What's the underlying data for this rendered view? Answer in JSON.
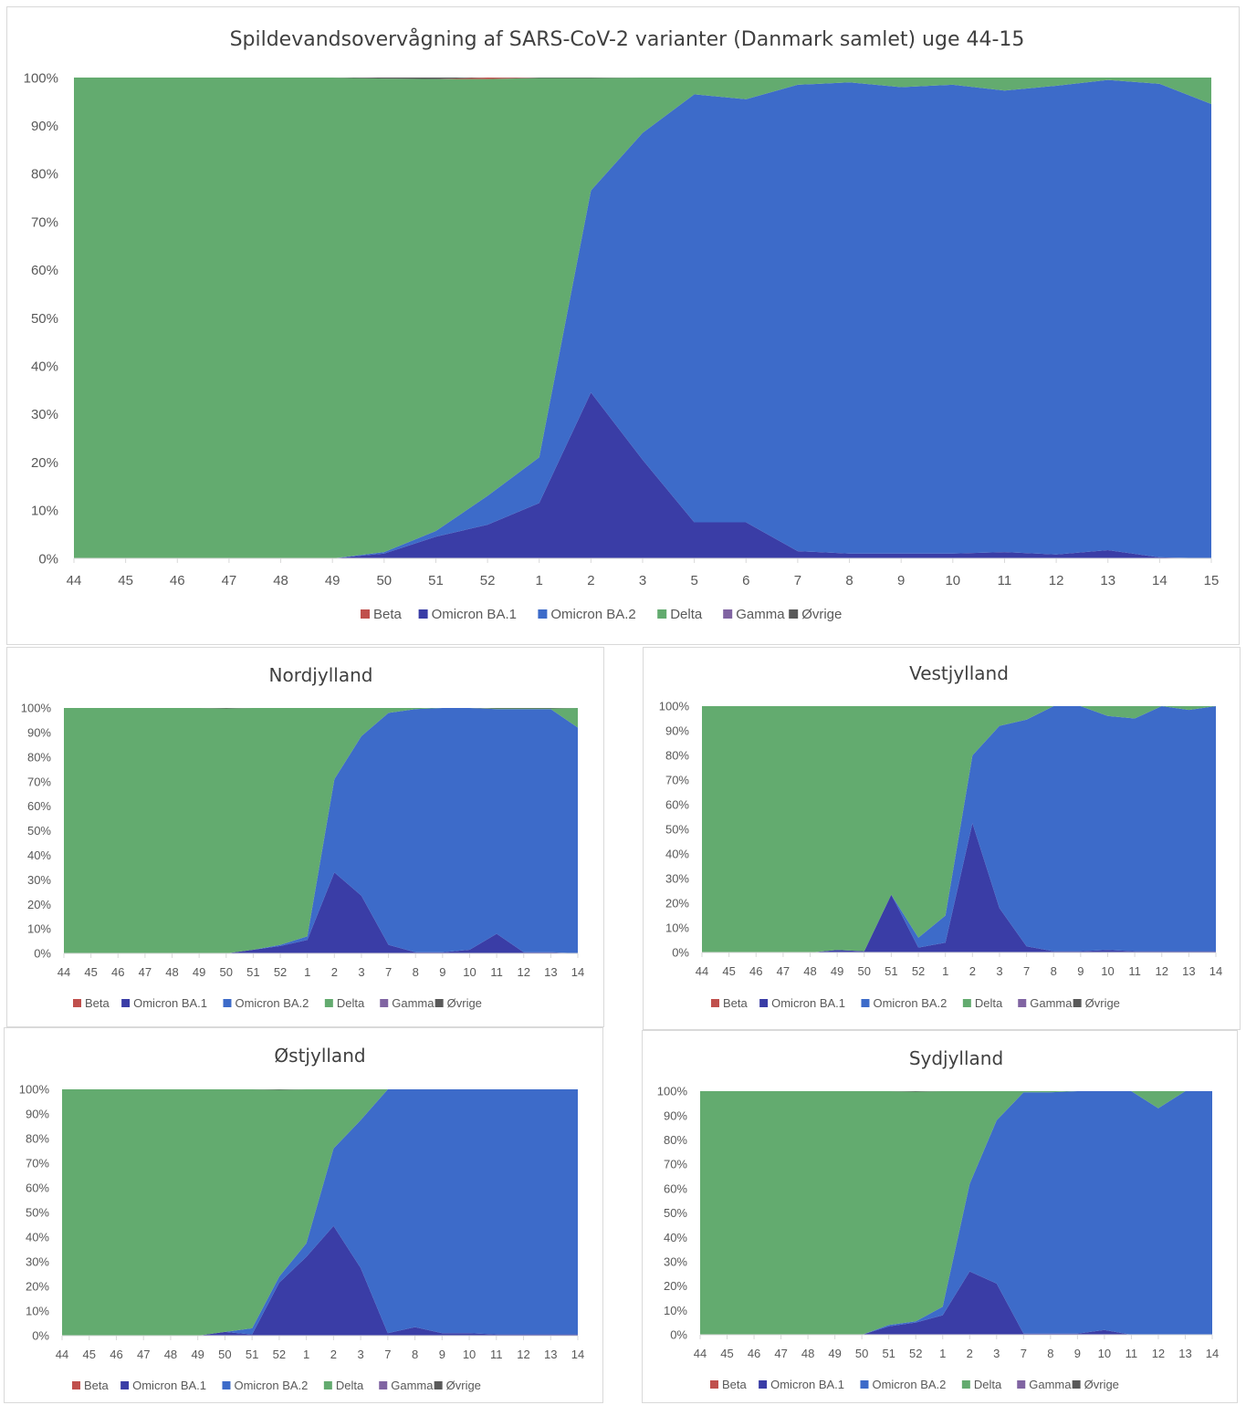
{
  "legend": [
    {
      "name": "Beta",
      "color": "#c0504d"
    },
    {
      "name": "Omicron BA.1",
      "color": "#3a3da6"
    },
    {
      "name": "Omicron BA.2",
      "color": "#3d6bc9"
    },
    {
      "name": "Delta",
      "color": "#63ab6f"
    },
    {
      "name": "Gamma",
      "color": "#8064a2"
    },
    {
      "name": "Øvrige",
      "color": "#595959"
    }
  ],
  "chart_data": [
    {
      "type": "area",
      "stacked": "percent",
      "title": "Spildevandsovervågning af SARS-CoV-2 varianter (Danmark samlet) uge 44-15",
      "categories": [
        "44",
        "45",
        "46",
        "47",
        "48",
        "49",
        "50",
        "51",
        "52",
        "1",
        "2",
        "3",
        "5",
        "6",
        "7",
        "8",
        "9",
        "10",
        "11",
        "12",
        "13",
        "14",
        "15"
      ],
      "yticks": [
        "0%",
        "10%",
        "20%",
        "30%",
        "40%",
        "50%",
        "60%",
        "70%",
        "80%",
        "90%",
        "100%"
      ],
      "ylim": [
        0,
        100
      ],
      "legend_position": "bottom",
      "series": [
        {
          "name": "Omicron BA.1",
          "values": [
            0,
            0,
            0,
            0,
            0,
            0,
            1,
            4.5,
            7,
            11.5,
            34.5,
            20.5,
            7.5,
            7.5,
            1.5,
            1,
            1,
            1,
            1.3,
            0.8,
            1.7,
            0.2,
            0
          ]
        },
        {
          "name": "Omicron BA.2",
          "values": [
            0,
            0,
            0,
            0,
            0,
            0,
            0.3,
            1.2,
            6,
            9.5,
            42,
            68,
            89,
            88,
            97,
            98,
            97,
            97.5,
            96,
            97.5,
            97.8,
            98.5,
            94.5
          ]
        },
        {
          "name": "Delta",
          "values": [
            100,
            100,
            100,
            100,
            100,
            100,
            98.5,
            94,
            86.7,
            78.9,
            23.4,
            11.5,
            3.5,
            4.5,
            1.5,
            1,
            2,
            1.5,
            2.7,
            1.7,
            0.5,
            1.3,
            5.5
          ]
        },
        {
          "name": "Beta",
          "values": [
            0,
            0,
            0,
            0,
            0,
            0,
            0,
            0,
            0.3,
            0,
            0,
            0,
            0,
            0,
            0,
            0,
            0,
            0,
            0,
            0,
            0,
            0,
            0
          ]
        },
        {
          "name": "Gamma",
          "values": [
            0,
            0,
            0,
            0,
            0,
            0,
            0,
            0,
            0,
            0,
            0,
            0,
            0,
            0,
            0,
            0,
            0,
            0,
            0,
            0,
            0,
            0,
            0
          ]
        },
        {
          "name": "Øvrige",
          "values": [
            0,
            0,
            0,
            0,
            0,
            0,
            0.2,
            0.3,
            0,
            0.1,
            0.1,
            0,
            0,
            0,
            0,
            0,
            0,
            0,
            0,
            0,
            0,
            0,
            0
          ]
        }
      ]
    },
    {
      "type": "area",
      "stacked": "percent",
      "title": "Nordjylland",
      "categories": [
        "44",
        "45",
        "46",
        "47",
        "48",
        "49",
        "50",
        "51",
        "52",
        "1",
        "2",
        "3",
        "7",
        "8",
        "9",
        "10",
        "11",
        "12",
        "13",
        "14"
      ],
      "yticks": [
        "0%",
        "10%",
        "20%",
        "30%",
        "40%",
        "50%",
        "60%",
        "70%",
        "80%",
        "90%",
        "100%"
      ],
      "ylim": [
        0,
        100
      ],
      "legend_position": "bottom",
      "series": [
        {
          "name": "Omicron BA.1",
          "values": [
            0,
            0,
            0,
            0,
            0,
            0,
            0,
            1.5,
            3,
            5.5,
            33,
            23.5,
            3.5,
            0.5,
            0.5,
            1.5,
            8,
            0.5,
            0.5,
            0
          ]
        },
        {
          "name": "Omicron BA.2",
          "values": [
            0,
            0,
            0,
            0,
            0,
            0,
            0,
            0,
            0.5,
            1.5,
            38,
            65,
            94.5,
            99,
            99.5,
            98.5,
            91.5,
            99,
            99,
            92
          ]
        },
        {
          "name": "Delta",
          "values": [
            100,
            100,
            100,
            100,
            100,
            100,
            99.8,
            98.5,
            96.5,
            93,
            29,
            11.5,
            2,
            0.5,
            0,
            0,
            0.3,
            0.3,
            0.3,
            8
          ]
        },
        {
          "name": "Beta",
          "values": [
            0,
            0,
            0,
            0,
            0,
            0,
            0,
            0,
            0,
            0,
            0,
            0,
            0,
            0,
            0,
            0,
            0,
            0,
            0,
            0
          ]
        },
        {
          "name": "Gamma",
          "values": [
            0,
            0,
            0,
            0,
            0,
            0,
            0,
            0,
            0,
            0,
            0,
            0,
            0,
            0,
            0,
            0,
            0,
            0,
            0,
            0
          ]
        },
        {
          "name": "Øvrige",
          "values": [
            0,
            0,
            0,
            0,
            0,
            0,
            0.2,
            0,
            0,
            0,
            0,
            0,
            0,
            0,
            0,
            0,
            0.2,
            0.2,
            0.2,
            0
          ]
        }
      ]
    },
    {
      "type": "area",
      "stacked": "percent",
      "title": "Vestjylland",
      "categories": [
        "44",
        "45",
        "46",
        "47",
        "48",
        "49",
        "50",
        "51",
        "52",
        "1",
        "2",
        "3",
        "7",
        "8",
        "9",
        "10",
        "11",
        "12",
        "13",
        "14"
      ],
      "yticks": [
        "0%",
        "10%",
        "20%",
        "30%",
        "40%",
        "50%",
        "60%",
        "70%",
        "80%",
        "90%",
        "100%"
      ],
      "ylim": [
        0,
        100
      ],
      "legend_position": "bottom",
      "series": [
        {
          "name": "Omicron BA.1",
          "values": [
            0,
            0,
            0,
            0,
            0,
            1,
            0.5,
            23.5,
            2,
            4,
            52.5,
            18,
            2.5,
            0.5,
            0.5,
            1,
            0.5,
            0.5,
            0.5,
            0.5
          ]
        },
        {
          "name": "Omicron BA.2",
          "values": [
            0,
            0,
            0,
            0,
            0,
            0,
            0,
            0,
            4,
            11,
            27.5,
            74,
            92,
            99.5,
            99.5,
            95,
            94.5,
            99.5,
            98,
            99.5
          ]
        },
        {
          "name": "Delta",
          "values": [
            100,
            100,
            100,
            100,
            100,
            99,
            99.5,
            76.5,
            94,
            85,
            20,
            8,
            5.5,
            0,
            0,
            4,
            5,
            0,
            1.5,
            0
          ]
        },
        {
          "name": "Beta",
          "values": [
            0,
            0,
            0,
            0,
            0,
            0,
            0,
            0,
            0,
            0,
            0,
            0,
            0,
            0,
            0,
            0,
            0,
            0,
            0,
            0
          ]
        },
        {
          "name": "Gamma",
          "values": [
            0,
            0,
            0,
            0,
            0,
            0,
            0,
            0,
            0,
            0,
            0,
            0,
            0,
            0,
            0,
            0,
            0,
            0,
            0,
            0
          ]
        },
        {
          "name": "Øvrige",
          "values": [
            0,
            0,
            0,
            0,
            0,
            0,
            0,
            0,
            0,
            0,
            0,
            0,
            0,
            0,
            0,
            0,
            0,
            0,
            0,
            0
          ]
        }
      ]
    },
    {
      "type": "area",
      "stacked": "percent",
      "title": "Østjylland",
      "categories": [
        "44",
        "45",
        "46",
        "47",
        "48",
        "49",
        "50",
        "51",
        "52",
        "1",
        "2",
        "3",
        "7",
        "8",
        "9",
        "10",
        "11",
        "12",
        "13",
        "14"
      ],
      "yticks": [
        "0%",
        "10%",
        "20%",
        "30%",
        "40%",
        "50%",
        "60%",
        "70%",
        "80%",
        "90%",
        "100%"
      ],
      "ylim": [
        0,
        100
      ],
      "legend_position": "bottom",
      "series": [
        {
          "name": "Omicron BA.1",
          "values": [
            0,
            0,
            0,
            0,
            0,
            0,
            1.5,
            0.5,
            21.5,
            32,
            44.5,
            27.5,
            1,
            3.5,
            1,
            1,
            0.5,
            0.5,
            0.5,
            0.5
          ]
        },
        {
          "name": "Omicron BA.2",
          "values": [
            0,
            0,
            0,
            0,
            0,
            0,
            0,
            2.5,
            2.5,
            5.5,
            31.5,
            60,
            99,
            96.5,
            99,
            99,
            99.5,
            99.5,
            99.5,
            99.5
          ]
        },
        {
          "name": "Delta",
          "values": [
            100,
            100,
            100,
            100,
            100,
            100,
            98.5,
            97,
            75.8,
            62.5,
            24,
            12.5,
            0,
            0,
            0,
            0,
            0,
            0,
            0,
            0
          ]
        },
        {
          "name": "Beta",
          "values": [
            0,
            0,
            0,
            0,
            0,
            0,
            0,
            0,
            0,
            0,
            0,
            0,
            0,
            0,
            0,
            0,
            0,
            0,
            0,
            0
          ]
        },
        {
          "name": "Gamma",
          "values": [
            0,
            0,
            0,
            0,
            0,
            0,
            0,
            0,
            0,
            0,
            0,
            0,
            0,
            0,
            0,
            0,
            0,
            0,
            0,
            0
          ]
        },
        {
          "name": "Øvrige",
          "values": [
            0,
            0,
            0,
            0,
            0,
            0,
            0,
            0,
            0.2,
            0,
            0,
            0,
            0,
            0,
            0,
            0,
            0,
            0,
            0,
            0
          ]
        }
      ]
    },
    {
      "type": "area",
      "stacked": "percent",
      "title": "Sydjylland",
      "categories": [
        "44",
        "45",
        "46",
        "47",
        "48",
        "49",
        "50",
        "51",
        "52",
        "1",
        "2",
        "3",
        "7",
        "8",
        "9",
        "10",
        "11",
        "12",
        "13",
        "14"
      ],
      "yticks": [
        "0%",
        "10%",
        "20%",
        "30%",
        "40%",
        "50%",
        "60%",
        "70%",
        "80%",
        "90%",
        "100%"
      ],
      "ylim": [
        0,
        100
      ],
      "legend_position": "bottom",
      "series": [
        {
          "name": "Omicron BA.1",
          "values": [
            0,
            0,
            0,
            0,
            0,
            0,
            0,
            3.5,
            5,
            8,
            26,
            21,
            0.5,
            0.5,
            0.5,
            2,
            0,
            0,
            0,
            0
          ]
        },
        {
          "name": "Omicron BA.2",
          "values": [
            0,
            0,
            0,
            0,
            0,
            0,
            0,
            0.5,
            0.5,
            3.5,
            36,
            67,
            99,
            99,
            99.5,
            98,
            100,
            93,
            100,
            100
          ]
        },
        {
          "name": "Delta",
          "values": [
            100,
            100,
            100,
            100,
            100,
            100,
            100,
            96,
            94.3,
            88.5,
            38,
            12,
            0.5,
            0.5,
            0,
            0,
            0,
            7,
            0,
            0
          ]
        },
        {
          "name": "Beta",
          "values": [
            0,
            0,
            0,
            0,
            0,
            0,
            0,
            0,
            0,
            0,
            0,
            0,
            0,
            0,
            0,
            0,
            0,
            0,
            0,
            0
          ]
        },
        {
          "name": "Gamma",
          "values": [
            0,
            0,
            0,
            0,
            0,
            0,
            0,
            0,
            0,
            0,
            0,
            0,
            0,
            0,
            0,
            0,
            0,
            0,
            0,
            0
          ]
        },
        {
          "name": "Øvrige",
          "values": [
            0,
            0,
            0,
            0,
            0,
            0,
            0,
            0,
            0.2,
            0,
            0,
            0,
            0,
            0,
            0,
            0,
            0,
            0,
            0,
            0
          ]
        }
      ]
    }
  ]
}
